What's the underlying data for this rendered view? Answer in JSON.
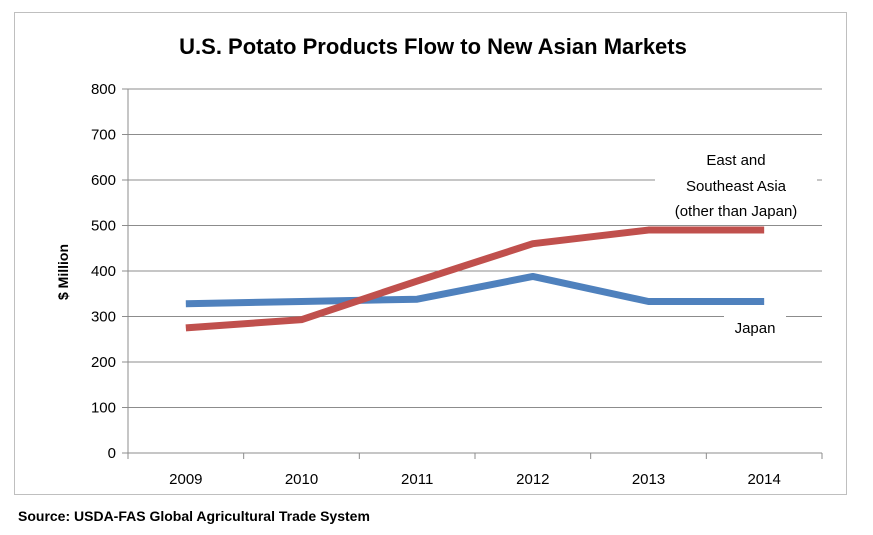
{
  "chart_data": {
    "type": "line",
    "title": "U.S. Potato Products Flow to New Asian Markets",
    "xlabel": "",
    "ylabel": "$ Million",
    "ylim": [
      0,
      800
    ],
    "yticks": [
      0,
      100,
      200,
      300,
      400,
      500,
      600,
      700,
      800
    ],
    "categories": [
      "2009",
      "2010",
      "2011",
      "2012",
      "2013",
      "2014"
    ],
    "grid": true,
    "series": [
      {
        "name": "Japan",
        "color": "#4f81bd",
        "values": [
          328,
          333,
          338,
          388,
          333,
          333
        ],
        "annotation": [
          "Japan"
        ]
      },
      {
        "name": "East and Southeast Asia (other than Japan)",
        "color": "#c0504d",
        "values": [
          275,
          293,
          378,
          460,
          490,
          490
        ],
        "annotation": [
          "East and",
          "Southeast Asia",
          "(other than Japan)"
        ]
      }
    ],
    "source": "Source: USDA-FAS Global Agricultural Trade System"
  }
}
